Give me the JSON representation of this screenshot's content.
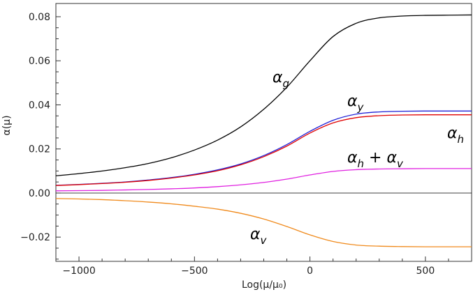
{
  "chart_data": {
    "type": "line",
    "title": "",
    "xlabel": "Log(μ/μ₀)",
    "ylabel": "α(μ)",
    "xlim": [
      -1100,
      700
    ],
    "ylim": [
      -0.031,
      0.086
    ],
    "x_ticks": [
      -1000,
      -500,
      0,
      500
    ],
    "x_tick_labels": [
      "−1000",
      "−500",
      "0",
      "500"
    ],
    "y_ticks": [
      -0.02,
      0.0,
      0.02,
      0.04,
      0.06,
      0.08
    ],
    "y_tick_labels": [
      "−0.02",
      "0.00",
      "0.02",
      "0.04",
      "0.06",
      "0.08"
    ],
    "zero_line": true,
    "grid": false,
    "x": [
      -1100,
      -1000,
      -900,
      -800,
      -700,
      -600,
      -500,
      -400,
      -300,
      -200,
      -100,
      0,
      100,
      200,
      300,
      400,
      500,
      600,
      700
    ],
    "series": [
      {
        "name": "alpha_g",
        "label": {
          "base": "α",
          "sub": "g"
        },
        "color": "#000000",
        "values": [
          0.0078,
          0.0088,
          0.01,
          0.0115,
          0.0134,
          0.016,
          0.0195,
          0.024,
          0.03,
          0.038,
          0.048,
          0.06,
          0.071,
          0.077,
          0.0795,
          0.0803,
          0.0806,
          0.0807,
          0.0808
        ]
      },
      {
        "name": "alpha_y",
        "label": {
          "base": "α",
          "sub": "y"
        },
        "color": "#1f1fd6",
        "values": [
          0.0035,
          0.0039,
          0.0044,
          0.005,
          0.0059,
          0.007,
          0.0085,
          0.0105,
          0.0132,
          0.017,
          0.022,
          0.028,
          0.033,
          0.0358,
          0.0368,
          0.0371,
          0.0372,
          0.0372,
          0.0372
        ]
      },
      {
        "name": "alpha_h",
        "label": {
          "base": "α",
          "sub": "h"
        },
        "color": "#e00000",
        "values": [
          0.0034,
          0.0038,
          0.0043,
          0.0049,
          0.0057,
          0.0068,
          0.0082,
          0.0101,
          0.0128,
          0.0165,
          0.0213,
          0.0272,
          0.0318,
          0.0342,
          0.0351,
          0.0354,
          0.0355,
          0.0355,
          0.0355
        ]
      },
      {
        "name": "alpha_h_plus_alpha_v",
        "label": {
          "base": "α",
          "sub": "h",
          "mid": " + ",
          "base2": "α",
          "sub2": "v"
        },
        "color": "#e020e0",
        "values": [
          0.001,
          0.0011,
          0.0012,
          0.0014,
          0.0016,
          0.0019,
          0.0023,
          0.0029,
          0.0037,
          0.0048,
          0.0063,
          0.0082,
          0.0098,
          0.0106,
          0.0109,
          0.011,
          0.0111,
          0.0111,
          0.0111
        ]
      },
      {
        "name": "alpha_v",
        "label": {
          "base": "α",
          "sub": "v"
        },
        "color": "#f08a1c",
        "values": [
          -0.0025,
          -0.0027,
          -0.003,
          -0.0035,
          -0.0041,
          -0.0049,
          -0.006,
          -0.0073,
          -0.0092,
          -0.0118,
          -0.0152,
          -0.019,
          -0.022,
          -0.0236,
          -0.0241,
          -0.0243,
          -0.0244,
          -0.0244,
          -0.0244
        ]
      }
    ]
  }
}
